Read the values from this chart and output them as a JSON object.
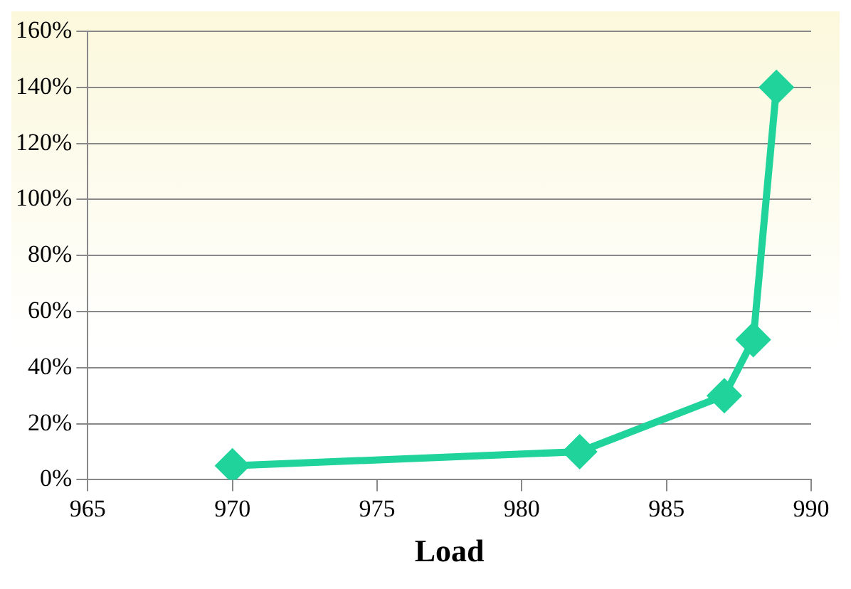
{
  "chart_data": {
    "type": "line",
    "xlabel": "Load",
    "x": [
      970,
      982,
      987,
      988,
      988.8
    ],
    "series": [
      {
        "color": "#1fd39b",
        "values": [
          5,
          10,
          30,
          50,
          140
        ]
      }
    ],
    "xlim": [
      965,
      990
    ],
    "xticks": [
      965,
      970,
      975,
      980,
      985,
      990
    ],
    "ylim": [
      0,
      160
    ],
    "yticks": [
      {
        "value": 0,
        "label": "0%"
      },
      {
        "value": 20,
        "label": "20%"
      },
      {
        "value": 40,
        "label": "40%"
      },
      {
        "value": 60,
        "label": "60%"
      },
      {
        "value": 80,
        "label": "80%"
      },
      {
        "value": 100,
        "label": "100%"
      },
      {
        "value": 120,
        "label": "120%"
      },
      {
        "value": 140,
        "label": "140%"
      },
      {
        "value": 160,
        "label": "160%"
      }
    ],
    "grid": "y",
    "legend": false,
    "marker": "diamond",
    "line_style": "solid"
  }
}
